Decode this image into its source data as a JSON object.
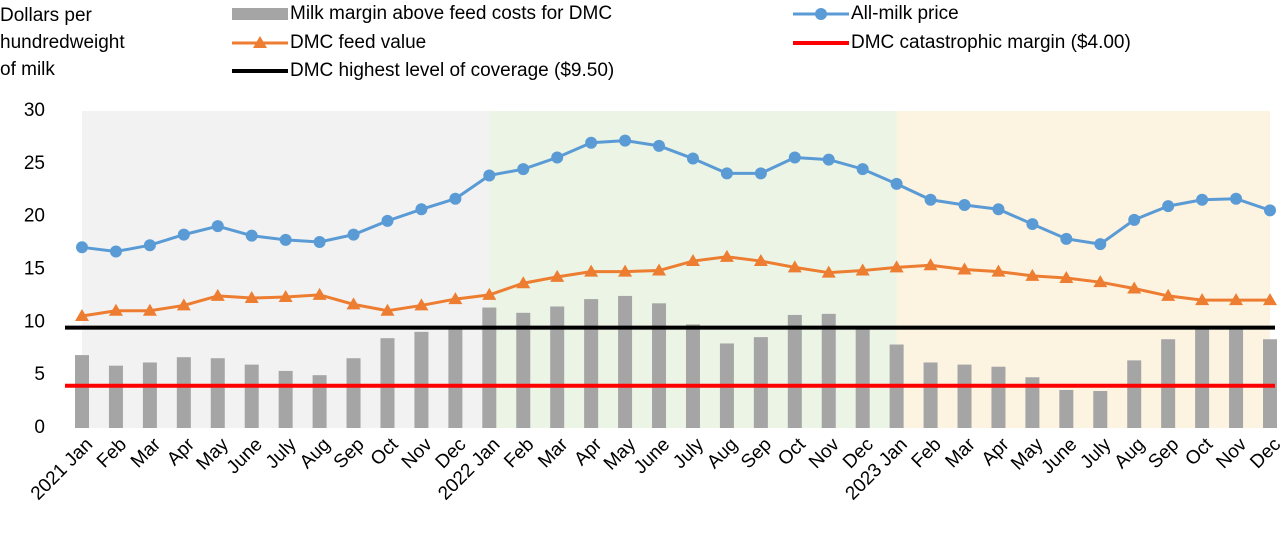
{
  "chart_data": {
    "type": "combo",
    "y_label": "Dollars per hundredweight of milk",
    "categories": [
      "2021 Jan",
      "Feb",
      "Mar",
      "Apr",
      "May",
      "June",
      "July",
      "Aug",
      "Sep",
      "Oct",
      "Nov",
      "Dec",
      "2022 Jan",
      "Feb",
      "Mar",
      "Apr",
      "May",
      "June",
      "July",
      "Aug",
      "Sep",
      "Oct",
      "Nov",
      "Dec",
      "2023 Jan",
      "Feb",
      "Mar",
      "Apr",
      "May",
      "June",
      "July",
      "Aug",
      "Sep",
      "Oct",
      "Nov",
      "Dec"
    ],
    "ylim": [
      0,
      30
    ],
    "yticks": [
      0,
      5,
      10,
      15,
      20,
      25,
      30
    ],
    "series": [
      {
        "name": "Milk margin above feed costs for DMC",
        "type": "bar",
        "color": "#a5a5a5",
        "values": [
          6.9,
          5.9,
          6.2,
          6.7,
          6.6,
          6.0,
          5.4,
          5.0,
          6.6,
          8.5,
          9.1,
          9.5,
          11.4,
          10.9,
          11.5,
          12.2,
          12.5,
          11.8,
          9.8,
          8.0,
          8.6,
          10.7,
          10.8,
          9.5,
          7.9,
          6.2,
          6.0,
          5.8,
          4.8,
          3.6,
          3.5,
          6.4,
          8.4,
          9.5,
          9.6,
          8.4
        ]
      },
      {
        "name": "All-milk price",
        "type": "line",
        "marker": "circle",
        "color": "#5b9bd5",
        "values": [
          17.1,
          16.7,
          17.3,
          18.3,
          19.1,
          18.2,
          17.8,
          17.6,
          18.3,
          19.6,
          20.7,
          21.7,
          23.9,
          24.5,
          25.6,
          27.0,
          27.2,
          26.7,
          25.5,
          24.1,
          24.1,
          25.6,
          25.4,
          24.5,
          23.1,
          21.6,
          21.1,
          20.7,
          19.3,
          17.9,
          17.4,
          19.7,
          21.0,
          21.6,
          21.7,
          20.6
        ]
      },
      {
        "name": "DMC feed value",
        "type": "line",
        "marker": "triangle",
        "color": "#ed7d31",
        "values": [
          10.6,
          11.1,
          11.1,
          11.6,
          12.5,
          12.3,
          12.4,
          12.6,
          11.7,
          11.1,
          11.6,
          12.2,
          12.6,
          13.7,
          14.3,
          14.8,
          14.8,
          14.9,
          15.8,
          16.2,
          15.8,
          15.2,
          14.7,
          14.9,
          15.2,
          15.4,
          15.0,
          14.8,
          14.4,
          14.2,
          13.8,
          13.2,
          12.5,
          12.1,
          12.1,
          12.1
        ]
      },
      {
        "name": "DMC catastrophic margin ($4.00)",
        "type": "hline",
        "color": "#ff0000",
        "value": 4
      },
      {
        "name": "DMC highest level of coverage ($9.50)",
        "type": "hline",
        "color": "#000000",
        "value": 9.5
      }
    ],
    "year_shading": [
      "#f2f2f2",
      "#ebf4e5",
      "#fdf3e1"
    ]
  }
}
